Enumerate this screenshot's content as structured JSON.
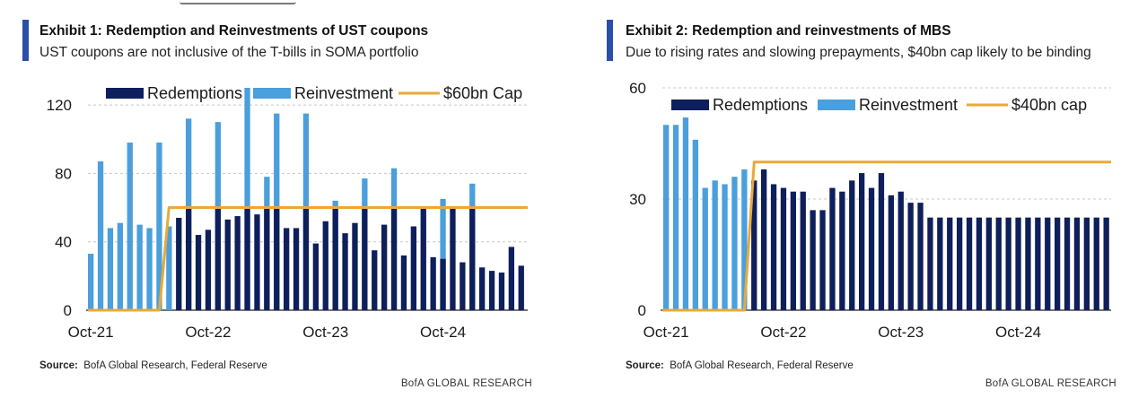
{
  "colors": {
    "redemptions": "#0e1f5b",
    "reinvestment": "#4a9fdc",
    "cap": "#e8a93a",
    "grid": "#c8c8c8",
    "accent": "#2a4fa8"
  },
  "chart_data": [
    {
      "type": "bar",
      "title": "Exhibit 1: Redemption and Reinvestments of UST coupons",
      "subtitle": "UST coupons are not inclusive of the T-bills in SOMA portfolio",
      "source_label": "Source:",
      "source_text": "BofA Global Research, Federal Reserve",
      "brand": "BofA GLOBAL RESEARCH",
      "ylim": [
        0,
        130
      ],
      "yticks": [
        0,
        40,
        80,
        120
      ],
      "ytick_labels": [
        "0",
        "40",
        "80",
        "120"
      ],
      "xtick_labels": [
        "Oct-21",
        "Oct-22",
        "Oct-23",
        "Oct-24"
      ],
      "xtick_index": [
        0,
        12,
        24,
        36
      ],
      "legend": [
        "Redemptions",
        "Reinvestment",
        "$60bn Cap"
      ],
      "series": [
        {
          "name": "Reinvestment",
          "values": [
            33,
            87,
            48,
            51,
            98,
            50,
            48,
            98,
            49,
            0,
            112,
            0,
            0,
            110,
            0,
            0,
            130,
            0,
            78,
            115,
            0,
            0,
            115,
            0,
            0,
            64,
            0,
            0,
            77,
            0,
            0,
            83,
            0,
            0,
            0,
            0,
            65,
            0,
            0,
            74,
            0,
            0,
            0,
            0,
            0,
            0
          ]
        },
        {
          "name": "Redemptions",
          "values": [
            0,
            0,
            0,
            0,
            0,
            0,
            0,
            0,
            0,
            54,
            60,
            44,
            47,
            60,
            53,
            55,
            60,
            56,
            60,
            60,
            48,
            48,
            60,
            39,
            52,
            60,
            45,
            51,
            60,
            35,
            50,
            60,
            32,
            49,
            60,
            31,
            30,
            60,
            28,
            60,
            25,
            23,
            22,
            37,
            26,
            0
          ]
        },
        {
          "name": "$60bn Cap",
          "values": [
            0,
            0,
            0,
            0,
            0,
            0,
            0,
            0,
            60,
            60,
            60,
            60,
            60,
            60,
            60,
            60,
            60,
            60,
            60,
            60,
            60,
            60,
            60,
            60,
            60,
            60,
            60,
            60,
            60,
            60,
            60,
            60,
            60,
            60,
            60,
            60,
            60,
            60,
            60,
            60,
            60,
            60,
            60,
            60,
            60,
            60
          ]
        }
      ]
    },
    {
      "type": "bar",
      "title": "Exhibit 2: Redemption and reinvestments of MBS",
      "subtitle": "Due to rising rates and slowing prepayments, $40bn cap likely to be binding",
      "source_label": "Source:",
      "source_text": "BofA Global Research, Federal Reserve",
      "brand": "BofA GLOBAL RESEARCH",
      "ylim": [
        0,
        60
      ],
      "yticks": [
        0,
        30,
        60
      ],
      "ytick_labels": [
        "0",
        "30",
        "60"
      ],
      "xtick_labels": [
        "Oct-21",
        "Oct-22",
        "Oct-23",
        "Oct-24"
      ],
      "xtick_index": [
        0,
        12,
        24,
        36
      ],
      "legend": [
        "Redemptions",
        "Reinvestment",
        "$40bn cap"
      ],
      "series": [
        {
          "name": "Reinvestment",
          "values": [
            50,
            50,
            52,
            46,
            33,
            35,
            34,
            36,
            38,
            0,
            0,
            0,
            0,
            0,
            0,
            0,
            0,
            0,
            0,
            0,
            0,
            0,
            0,
            0,
            0,
            0,
            0,
            0,
            0,
            0,
            0,
            0,
            0,
            0,
            0,
            0,
            0,
            0,
            0,
            0,
            0,
            0,
            0,
            0,
            0,
            0
          ]
        },
        {
          "name": "Redemptions",
          "values": [
            0,
            0,
            0,
            0,
            0,
            0,
            0,
            0,
            0,
            35,
            38,
            34,
            33,
            32,
            32,
            27,
            27,
            33,
            32,
            35,
            37,
            33,
            37,
            31,
            32,
            29,
            29,
            25,
            25,
            25,
            25,
            25,
            25,
            25,
            25,
            25,
            25,
            25,
            25,
            25,
            25,
            25,
            25,
            25,
            25,
            25
          ]
        },
        {
          "name": "$40bn cap",
          "values": [
            0,
            0,
            0,
            0,
            0,
            0,
            0,
            0,
            0,
            40,
            40,
            40,
            40,
            40,
            40,
            40,
            40,
            40,
            40,
            40,
            40,
            40,
            40,
            40,
            40,
            40,
            40,
            40,
            40,
            40,
            40,
            40,
            40,
            40,
            40,
            40,
            40,
            40,
            40,
            40,
            40,
            40,
            40,
            40,
            40,
            40
          ]
        }
      ]
    }
  ]
}
